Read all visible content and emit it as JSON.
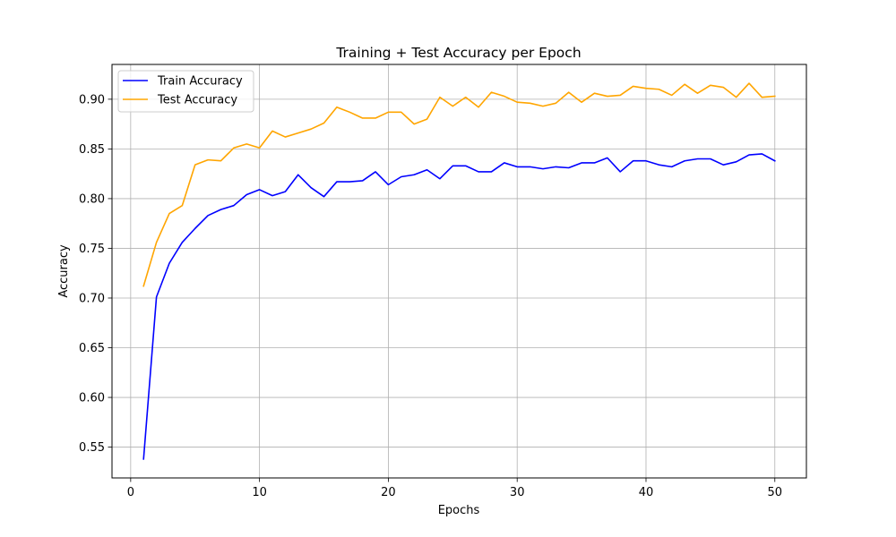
{
  "chart_data": {
    "type": "line",
    "title": "Training + Test Accuracy per Epoch",
    "xlabel": "Epochs",
    "ylabel": "Accuracy",
    "xlim": [
      -1.45,
      52.45
    ],
    "ylim": [
      0.519,
      0.935
    ],
    "xticks": [
      0,
      10,
      20,
      30,
      40,
      50
    ],
    "yticks": [
      0.55,
      0.6,
      0.65,
      0.7,
      0.75,
      0.8,
      0.85,
      0.9
    ],
    "grid": true,
    "legend": "upper-left",
    "x": [
      1,
      2,
      3,
      4,
      5,
      6,
      7,
      8,
      9,
      10,
      11,
      12,
      13,
      14,
      15,
      16,
      17,
      18,
      19,
      20,
      21,
      22,
      23,
      24,
      25,
      26,
      27,
      28,
      29,
      30,
      31,
      32,
      33,
      34,
      35,
      36,
      37,
      38,
      39,
      40,
      41,
      42,
      43,
      44,
      45,
      46,
      47,
      48,
      49,
      50
    ],
    "series": [
      {
        "name": "Train Accuracy",
        "color": "#0000ff",
        "values": [
          0.538,
          0.701,
          0.735,
          0.756,
          0.77,
          0.783,
          0.789,
          0.793,
          0.804,
          0.809,
          0.803,
          0.807,
          0.824,
          0.811,
          0.802,
          0.817,
          0.817,
          0.818,
          0.827,
          0.814,
          0.822,
          0.824,
          0.829,
          0.82,
          0.833,
          0.833,
          0.827,
          0.827,
          0.836,
          0.832,
          0.832,
          0.83,
          0.832,
          0.831,
          0.836,
          0.836,
          0.841,
          0.827,
          0.838,
          0.838,
          0.834,
          0.832,
          0.838,
          0.84,
          0.84,
          0.834,
          0.837,
          0.844,
          0.845,
          0.838
        ]
      },
      {
        "name": "Test Accuracy",
        "color": "#ffa500",
        "values": [
          0.712,
          0.756,
          0.785,
          0.793,
          0.834,
          0.839,
          0.838,
          0.851,
          0.855,
          0.851,
          0.868,
          0.862,
          0.866,
          0.87,
          0.876,
          0.892,
          0.887,
          0.881,
          0.881,
          0.887,
          0.887,
          0.875,
          0.88,
          0.902,
          0.893,
          0.902,
          0.892,
          0.907,
          0.903,
          0.897,
          0.896,
          0.893,
          0.896,
          0.907,
          0.897,
          0.906,
          0.903,
          0.904,
          0.913,
          0.911,
          0.91,
          0.904,
          0.915,
          0.906,
          0.914,
          0.912,
          0.902,
          0.916,
          0.902,
          0.903
        ]
      }
    ]
  }
}
